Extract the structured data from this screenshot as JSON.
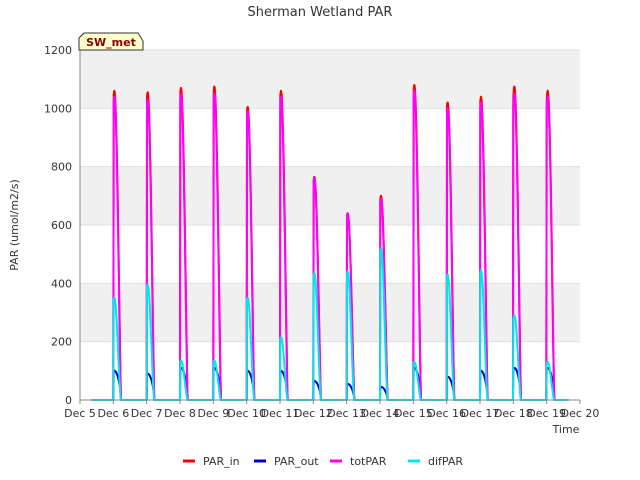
{
  "chart_data": {
    "type": "line",
    "title": "Sherman Wetland PAR",
    "xlabel": "Time",
    "ylabel": "PAR (umol/m2/s)",
    "badge": "SW_met",
    "xlim": [
      5,
      20
    ],
    "ylim": [
      0,
      1200
    ],
    "x_ticks": [
      {
        "value": 5,
        "label": "Dec 5"
      },
      {
        "value": 6,
        "label": "Dec 6"
      },
      {
        "value": 7,
        "label": "Dec 7"
      },
      {
        "value": 8,
        "label": "Dec 8"
      },
      {
        "value": 9,
        "label": "Dec 9"
      },
      {
        "value": 10,
        "label": "Dec 10"
      },
      {
        "value": 11,
        "label": "Dec 11"
      },
      {
        "value": 12,
        "label": "Dec 12"
      },
      {
        "value": 13,
        "label": "Dec 13"
      },
      {
        "value": 14,
        "label": "Dec 14"
      },
      {
        "value": 15,
        "label": "Dec 15"
      },
      {
        "value": 16,
        "label": "Dec 16"
      },
      {
        "value": 17,
        "label": "Dec 17"
      },
      {
        "value": 18,
        "label": "Dec 18"
      },
      {
        "value": 19,
        "label": "Dec 19"
      },
      {
        "value": 20,
        "label": "Dec 20"
      }
    ],
    "y_ticks": [
      0,
      200,
      400,
      600,
      800,
      1000,
      1200
    ],
    "grid": "horizontal bands",
    "legend_position": "bottom",
    "series": [
      {
        "name": "PAR_in",
        "color": "#ff0000",
        "peaks": [
          1060,
          1055,
          1070,
          1075,
          1005,
          1060,
          765,
          640,
          700,
          1080,
          1020,
          1040,
          1075,
          1060
        ]
      },
      {
        "name": "PAR_out",
        "color": "#0000cc",
        "peaks": [
          100,
          90,
          110,
          110,
          100,
          100,
          65,
          55,
          45,
          110,
          80,
          100,
          110,
          110
        ]
      },
      {
        "name": "totPAR",
        "color": "#ff00ff",
        "peaks": [
          1040,
          1030,
          1050,
          1050,
          990,
          1040,
          760,
          640,
          690,
          1060,
          1000,
          1020,
          1050,
          1040
        ]
      },
      {
        "name": "difPAR",
        "color": "#00e5ee",
        "peaks": [
          350,
          395,
          135,
          135,
          350,
          215,
          435,
          440,
          520,
          130,
          430,
          445,
          290,
          130
        ]
      }
    ]
  }
}
